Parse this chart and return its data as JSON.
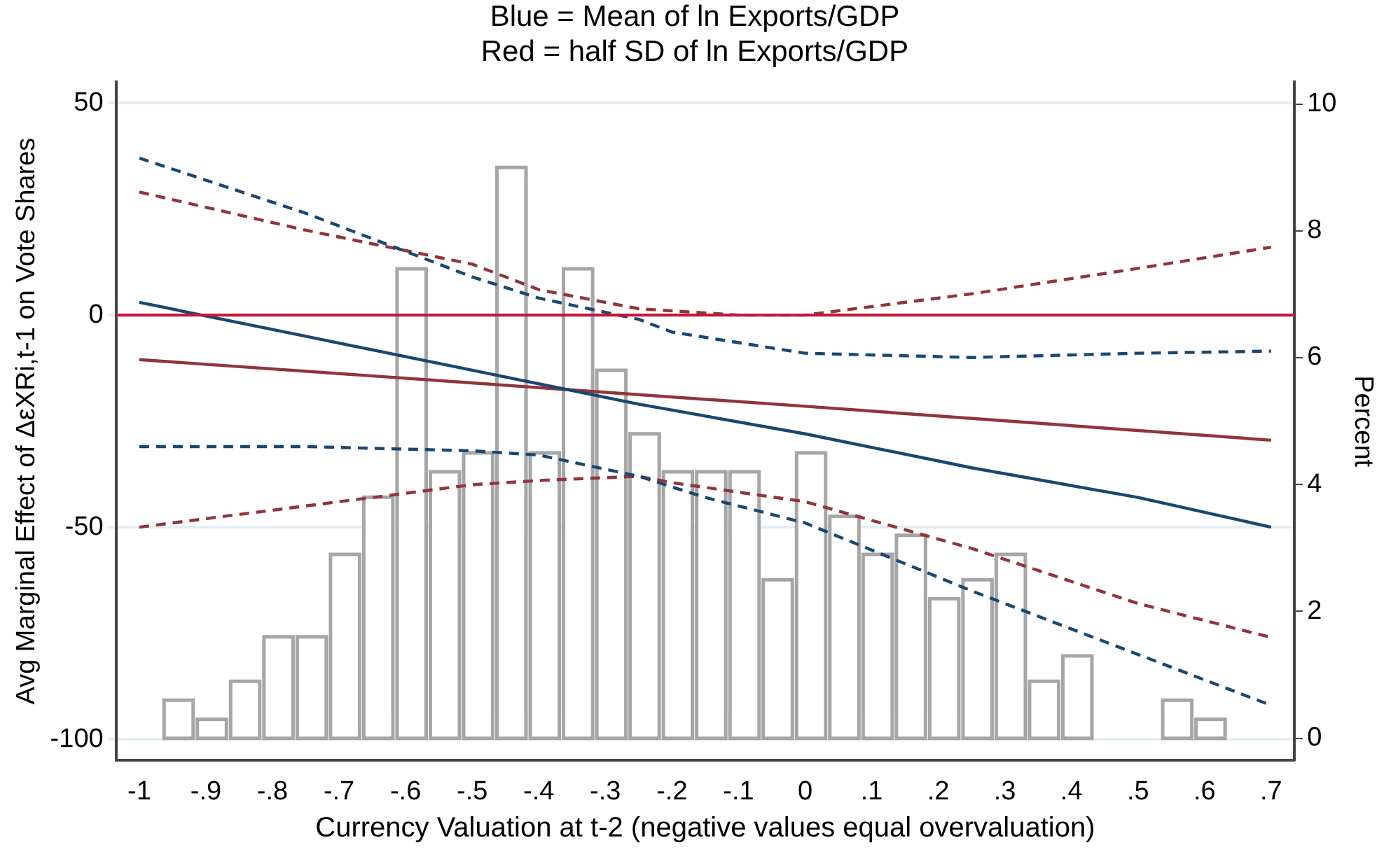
{
  "chart_data": {
    "type": "line",
    "title": "Blue = Mean of ln Exports/GDP",
    "subtitle": "Red = half SD of ln Exports/GDP",
    "xlabel": "Currency Valuation at t-2 (negative values equal overvaluation)",
    "ylabel": "Avg Marginal Effect of ΔεXRi,t-1 on Vote Shares",
    "y2label": "Percent",
    "xlim": [
      -1.035,
      0.735
    ],
    "xticks": [
      -1,
      {
        "value": -0.9,
        "label": "-.9"
      },
      {
        "value": -0.8,
        "label": "-.8"
      },
      {
        "value": -0.7,
        "label": "-.7"
      },
      {
        "value": -0.6,
        "label": "-.6"
      },
      {
        "value": -0.5,
        "label": "-.5"
      },
      {
        "value": -0.4,
        "label": "-.4"
      },
      {
        "value": -0.3,
        "label": "-.3"
      },
      {
        "value": -0.2,
        "label": "-.2"
      },
      {
        "value": -0.1,
        "label": "-.1"
      },
      0,
      {
        "value": 0.1,
        "label": ".1"
      },
      {
        "value": 0.2,
        "label": ".2"
      },
      {
        "value": 0.3,
        "label": ".3"
      },
      {
        "value": 0.4,
        "label": ".4"
      },
      {
        "value": 0.5,
        "label": ".5"
      },
      {
        "value": 0.6,
        "label": ".6"
      },
      {
        "value": 0.7,
        "label": ".7"
      }
    ],
    "ylim": [
      -105,
      55
    ],
    "yticks": [
      -100,
      -50,
      0,
      50
    ],
    "y2lim": [
      -0.35,
      10.35
    ],
    "y2ticks": [
      0,
      2,
      4,
      6,
      8,
      10
    ],
    "grid": "y",
    "marker": "none",
    "ref_lines": [
      {
        "axis": "y",
        "value": 0,
        "color": "#c8163c"
      }
    ],
    "series": [
      {
        "type": "histogram",
        "axis": "y2",
        "color": "#a6a6a6",
        "bins": [
          -0.966,
          -0.916,
          -0.866,
          -0.816,
          -0.766,
          -0.716,
          -0.666,
          -0.616,
          -0.566,
          -0.516,
          -0.466,
          -0.416,
          -0.366,
          -0.316,
          -0.266,
          -0.216,
          -0.166,
          -0.116,
          -0.066,
          -0.016,
          0.034,
          0.084,
          0.134,
          0.184,
          0.234,
          0.284,
          0.334,
          0.384,
          0.434
        ],
        "values": [
          0.6,
          0.3,
          0.9,
          1.6,
          1.6,
          2.9,
          3.8,
          7.4,
          4.2,
          4.5,
          9.0,
          4.5,
          7.4,
          5.8,
          4.8,
          4.2,
          4.2,
          4.2,
          2.5,
          4.5,
          3.5,
          2.9,
          3.2,
          2.2,
          2.5,
          2.9,
          0.9,
          1.3
        ]
      },
      {
        "type": "histogram",
        "axis": "y2",
        "color": "#a6a6a6",
        "bins": [
          0.534,
          0.584,
          0.634
        ],
        "values": [
          0.6,
          0.3
        ]
      },
      {
        "type": "line",
        "color": "#1a476f",
        "line_style": "solid",
        "x": [
          -1,
          -0.75,
          -0.5,
          -0.25,
          0,
          0.25,
          0.5,
          0.7
        ],
        "values": [
          3,
          -5,
          -13,
          -21,
          -28,
          -36,
          -43,
          -50
        ]
      },
      {
        "type": "line",
        "color": "#90353b",
        "line_style": "solid",
        "x": [
          -1,
          -0.5,
          0,
          0.7
        ],
        "values": [
          -10.5,
          -16,
          -21.5,
          -29.5
        ]
      },
      {
        "type": "line",
        "color": "#1a476f",
        "line_style": "dashed",
        "x": [
          -1,
          -0.75,
          -0.5,
          -0.4,
          -0.25,
          -0.2,
          0,
          0.25,
          0.5,
          0.7
        ],
        "values": [
          37,
          24,
          9,
          4,
          -1,
          -4,
          -9,
          -10,
          -9,
          -8.5
        ]
      },
      {
        "type": "line",
        "color": "#1a476f",
        "line_style": "dashed",
        "x": [
          -1,
          -0.75,
          -0.5,
          -0.4,
          -0.25,
          -0.15,
          -0.1,
          0,
          0.25,
          0.5,
          0.7
        ],
        "values": [
          -31,
          -31,
          -32,
          -33,
          -38,
          -43,
          -45,
          -49,
          -65,
          -80,
          -92
        ]
      },
      {
        "type": "line",
        "color": "#90353b",
        "line_style": "dashed",
        "x": [
          -1,
          -0.75,
          -0.5,
          -0.4,
          -0.25,
          -0.1,
          0,
          0.25,
          0.5,
          0.7
        ],
        "values": [
          29,
          20,
          12,
          6,
          1.5,
          0,
          0,
          5,
          11,
          16
        ]
      },
      {
        "type": "line",
        "color": "#90353b",
        "line_style": "dashed",
        "x": [
          -1,
          -0.75,
          -0.5,
          -0.4,
          -0.25,
          -0.2,
          0,
          0.25,
          0.5,
          0.7
        ],
        "values": [
          -50,
          -45,
          -40,
          -39,
          -38,
          -39.5,
          -44,
          -55,
          -68,
          -76
        ]
      }
    ]
  }
}
